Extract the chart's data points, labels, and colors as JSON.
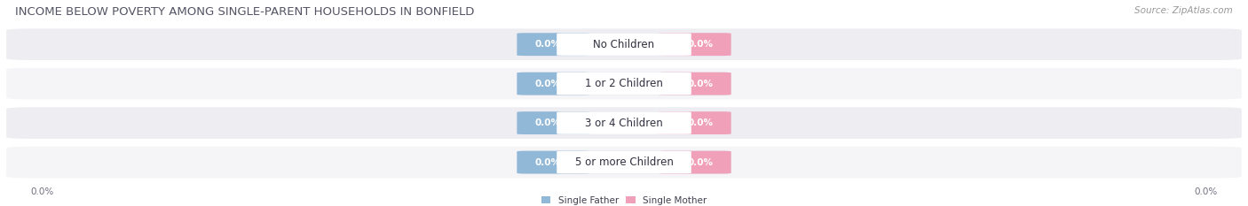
{
  "title": "INCOME BELOW POVERTY AMONG SINGLE-PARENT HOUSEHOLDS IN BONFIELD",
  "source": "Source: ZipAtlas.com",
  "categories": [
    "No Children",
    "1 or 2 Children",
    "3 or 4 Children",
    "5 or more Children"
  ],
  "father_values": [
    0.0,
    0.0,
    0.0,
    0.0
  ],
  "mother_values": [
    0.0,
    0.0,
    0.0,
    0.0
  ],
  "father_color": "#92b8d8",
  "mother_color": "#f0a0b8",
  "title_color": "#555565",
  "title_fontsize": 9.5,
  "source_fontsize": 7.5,
  "label_fontsize": 7.5,
  "category_fontsize": 8.5,
  "value_fontsize": 7.5,
  "background_color": "#ffffff",
  "legend_father": "Single Father",
  "legend_mother": "Single Mother",
  "row_colors": [
    "#ededf2",
    "#f5f5f8"
  ],
  "row_pill_color": "#dcdce6",
  "center_white": "#ffffff",
  "xlim": [
    -1.0,
    1.0
  ]
}
